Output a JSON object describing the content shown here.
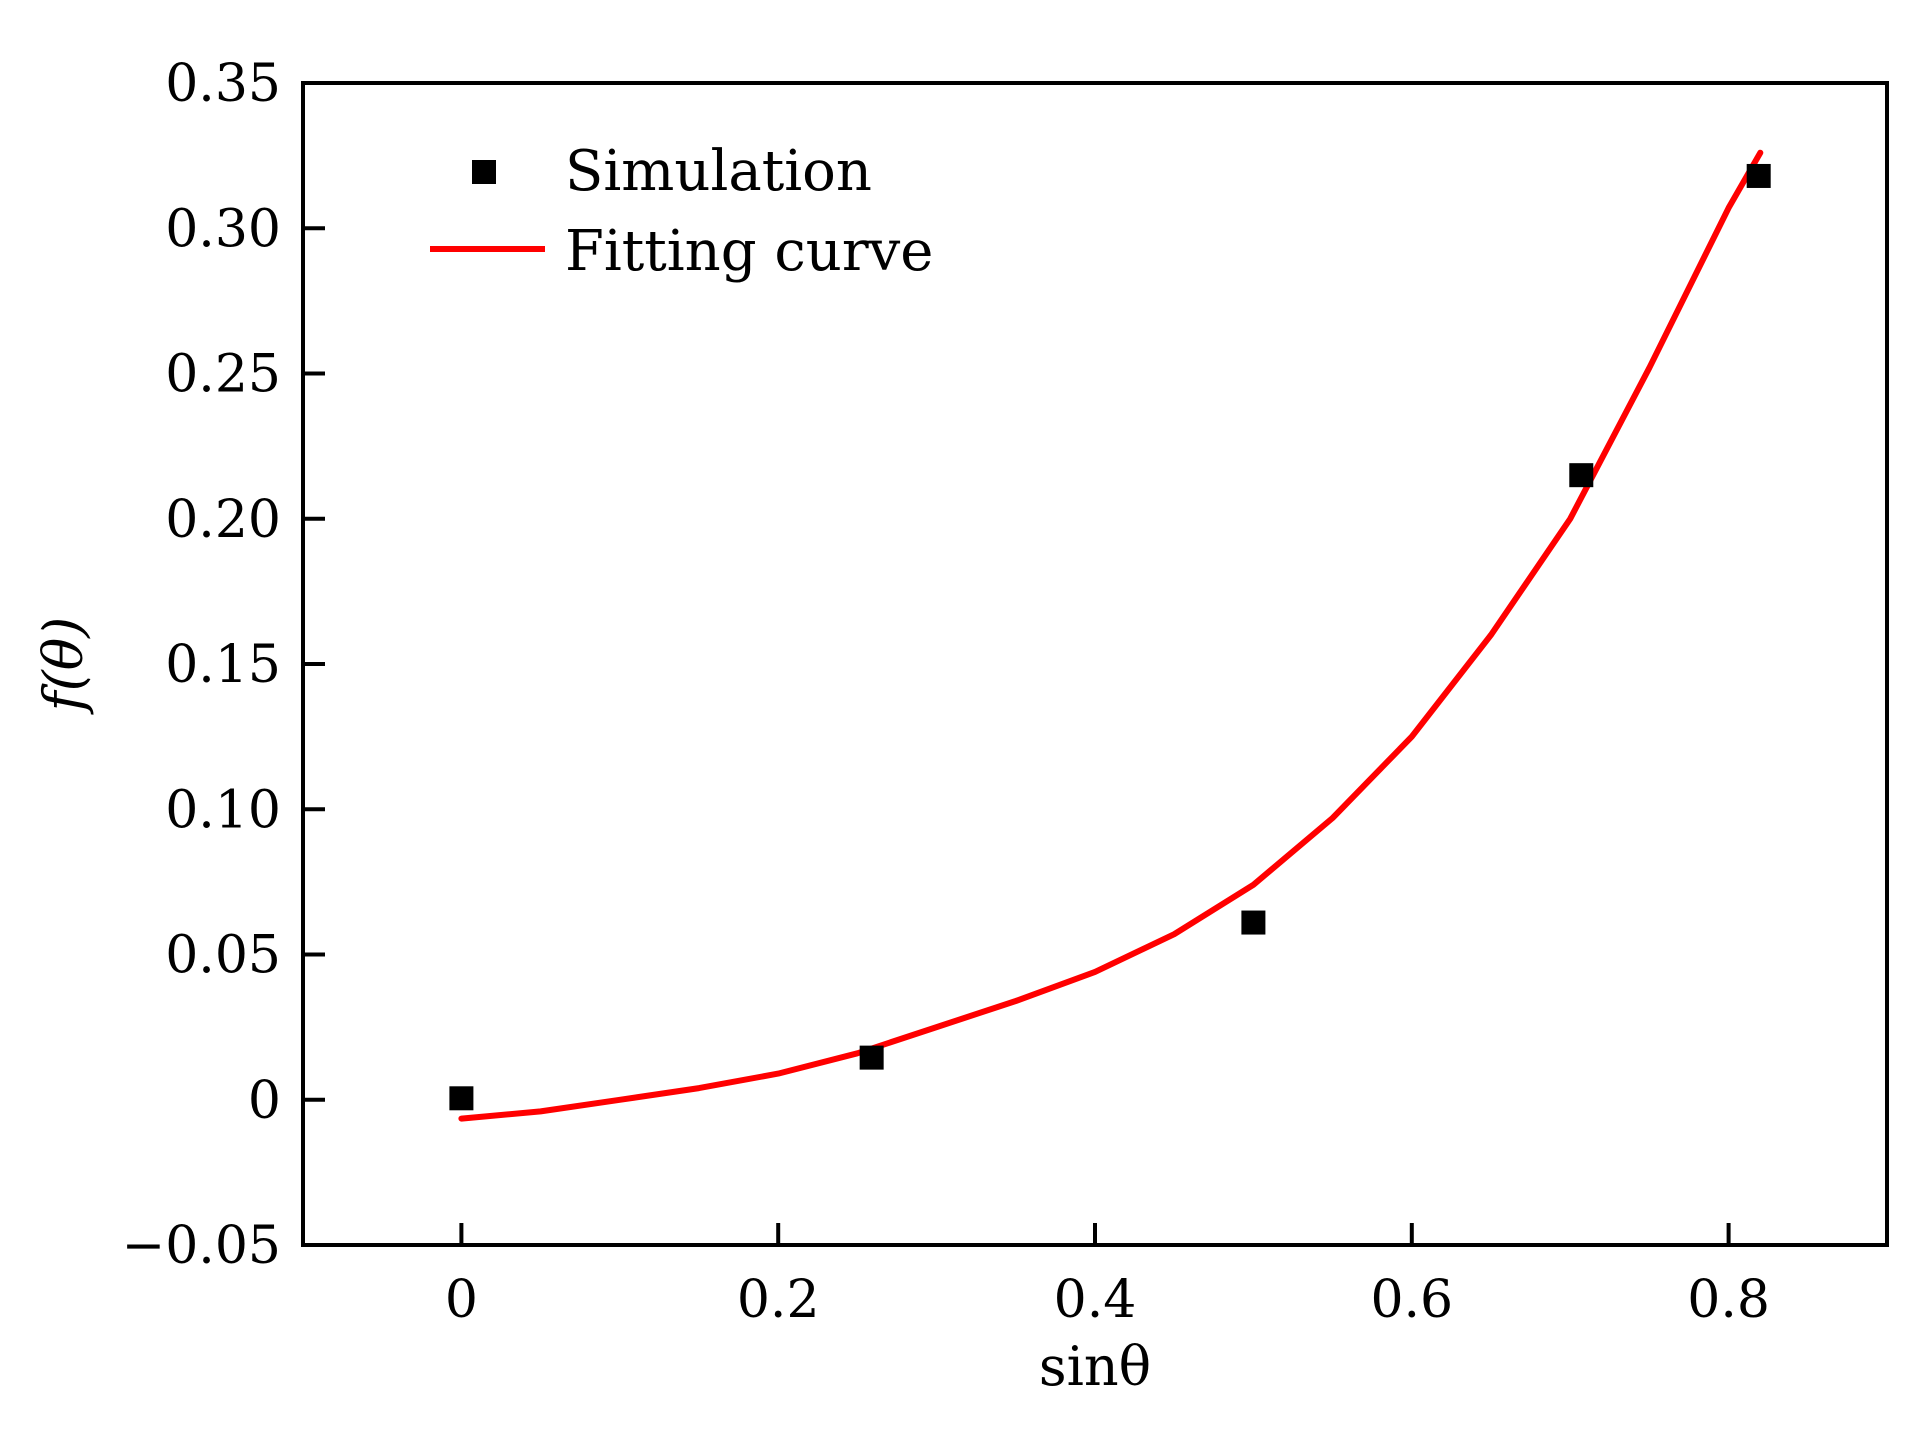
{
  "chart_data": {
    "type": "scatter",
    "xlabel": "sinθ",
    "ylabel": "f(θ)",
    "xlim": [
      -0.1,
      0.9
    ],
    "ylim": [
      -0.05,
      0.35
    ],
    "xticks": [
      0,
      0.2,
      0.4,
      0.6,
      0.8
    ],
    "xtick_labels": [
      "0",
      "0.2",
      "0.4",
      "0.6",
      "0.8"
    ],
    "yticks": [
      -0.05,
      0,
      0.05,
      0.1,
      0.15,
      0.2,
      0.25,
      0.3,
      0.35
    ],
    "ytick_labels": [
      "−0.05",
      "0",
      "0.05",
      "0.10",
      "0.15",
      "0.20",
      "0.25",
      "0.30",
      "0.35"
    ],
    "grid": false,
    "legend_position": "top-left",
    "series": [
      {
        "name": "Simulation",
        "kind": "scatter",
        "marker": "square",
        "color": "#000000",
        "x": [
          0,
          0.259,
          0.5,
          0.707,
          0.819
        ],
        "y": [
          0.0005,
          0.0145,
          0.061,
          0.215,
          0.318
        ]
      },
      {
        "name": "Fitting curve",
        "kind": "line",
        "color": "#ff0000",
        "x": [
          0,
          0.05,
          0.1,
          0.15,
          0.2,
          0.25,
          0.3,
          0.35,
          0.4,
          0.45,
          0.5,
          0.55,
          0.6,
          0.65,
          0.7,
          0.75,
          0.8,
          0.82
        ],
        "y": [
          -0.0065,
          -0.004,
          0.0,
          0.004,
          0.009,
          0.016,
          0.025,
          0.034,
          0.044,
          0.057,
          0.074,
          0.097,
          0.125,
          0.16,
          0.2,
          0.252,
          0.307,
          0.326
        ]
      }
    ]
  }
}
